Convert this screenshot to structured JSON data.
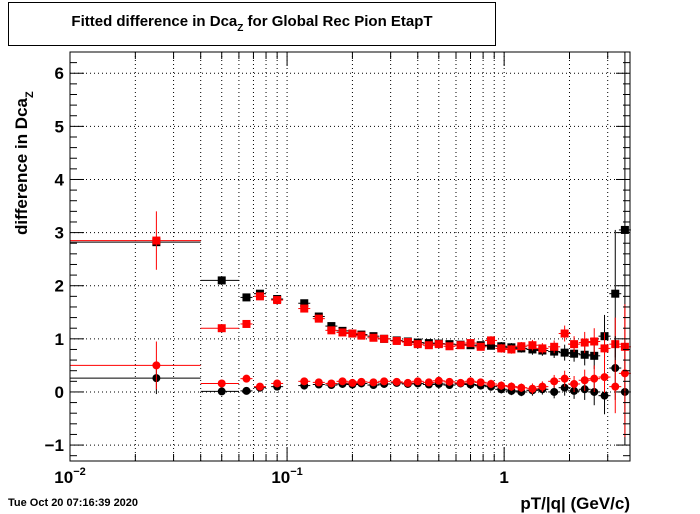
{
  "title": {
    "prefix": "Fitted difference in Dca",
    "sub": "Z",
    "suffix": " for Global Rec Pion EtapT"
  },
  "footer": {
    "datetime": "Tue Oct 20 07:16:39 2020"
  },
  "chart_data": {
    "type": "scatter",
    "title": "Fitted difference in DcaZ for Global Rec Pion EtapT",
    "xlabel": "pT/|q| (GeV/c)",
    "ylabel": "difference in Dca",
    "ylabel_sub": "Z",
    "x_scale": "log",
    "xlim": [
      0.01,
      3.8
    ],
    "ylim": [
      -1.3,
      6.4
    ],
    "grid": true,
    "x_ticks": [
      {
        "value": 0.01,
        "base": "10",
        "exp": "−2"
      },
      {
        "value": 0.1,
        "base": "10",
        "exp": "−1"
      },
      {
        "value": 1,
        "base": "1",
        "exp": ""
      }
    ],
    "y_ticks": [
      -1,
      0,
      1,
      2,
      3,
      4,
      5,
      6
    ],
    "series": [
      {
        "marker": "square",
        "color": "#000000",
        "points": [
          {
            "x": 0.025,
            "xerr": [
              0.01,
              0.04
            ],
            "y": 2.82,
            "yerr": 0.05
          },
          {
            "x": 0.05,
            "xerr": [
              0.04,
              0.06
            ],
            "y": 2.1,
            "yerr": 0.05
          },
          {
            "x": 0.065,
            "y": 1.78,
            "yerr": 0.05
          },
          {
            "x": 0.075,
            "y": 1.85,
            "yerr": 0.05
          },
          {
            "x": 0.09,
            "y": 1.75,
            "yerr": 0.05
          },
          {
            "x": 0.12,
            "y": 1.67,
            "yerr": 0.05
          },
          {
            "x": 0.14,
            "y": 1.42,
            "yerr": 0.05
          },
          {
            "x": 0.16,
            "y": 1.24,
            "yerr": 0.05
          },
          {
            "x": 0.18,
            "y": 1.15,
            "yerr": 0.05
          },
          {
            "x": 0.2,
            "y": 1.1,
            "yerr": 0.05
          },
          {
            "x": 0.22,
            "y": 1.08,
            "yerr": 0.05
          },
          {
            "x": 0.25,
            "y": 1.05,
            "yerr": 0.05
          },
          {
            "x": 0.28,
            "y": 1.0,
            "yerr": 0.05
          },
          {
            "x": 0.32,
            "y": 0.97,
            "yerr": 0.05
          },
          {
            "x": 0.36,
            "y": 0.95,
            "yerr": 0.05
          },
          {
            "x": 0.4,
            "y": 0.93,
            "yerr": 0.05
          },
          {
            "x": 0.45,
            "y": 0.92,
            "yerr": 0.05
          },
          {
            "x": 0.5,
            "y": 0.91,
            "yerr": 0.05
          },
          {
            "x": 0.56,
            "y": 0.9,
            "yerr": 0.05
          },
          {
            "x": 0.63,
            "y": 0.89,
            "yerr": 0.05
          },
          {
            "x": 0.7,
            "y": 0.88,
            "yerr": 0.05
          },
          {
            "x": 0.78,
            "y": 0.88,
            "yerr": 0.05
          },
          {
            "x": 0.87,
            "y": 0.87,
            "yerr": 0.05
          },
          {
            "x": 0.97,
            "y": 0.86,
            "yerr": 0.08
          },
          {
            "x": 1.08,
            "y": 0.84,
            "yerr": 0.08
          },
          {
            "x": 1.2,
            "y": 0.82,
            "yerr": 0.08
          },
          {
            "x": 1.35,
            "y": 0.8,
            "yerr": 0.1
          },
          {
            "x": 1.5,
            "y": 0.78,
            "yerr": 0.1
          },
          {
            "x": 1.7,
            "y": 0.76,
            "yerr": 0.12
          },
          {
            "x": 1.9,
            "y": 0.74,
            "yerr": 0.15
          },
          {
            "x": 2.1,
            "y": 0.72,
            "yerr": 0.15
          },
          {
            "x": 2.35,
            "y": 0.7,
            "yerr": 0.2
          },
          {
            "x": 2.6,
            "y": 0.68,
            "yerr": 0.25
          },
          {
            "x": 2.9,
            "y": 1.05,
            "yerr": 0.4
          },
          {
            "x": 3.25,
            "y": 1.85,
            "yerr": 1.2
          },
          {
            "x": 3.6,
            "y": 3.05,
            "yerr": 3.4
          }
        ]
      },
      {
        "marker": "square",
        "color": "#ff0000",
        "points": [
          {
            "x": 0.025,
            "xerr": [
              0.01,
              0.04
            ],
            "y": 2.85,
            "yerr": 0.55
          },
          {
            "x": 0.05,
            "xerr": [
              0.04,
              0.06
            ],
            "y": 1.2,
            "yerr": 0.05
          },
          {
            "x": 0.065,
            "y": 1.28,
            "yerr": 0.05
          },
          {
            "x": 0.075,
            "y": 1.8,
            "yerr": 0.05
          },
          {
            "x": 0.09,
            "y": 1.73,
            "yerr": 0.05
          },
          {
            "x": 0.12,
            "y": 1.57,
            "yerr": 0.05
          },
          {
            "x": 0.14,
            "y": 1.38,
            "yerr": 0.05
          },
          {
            "x": 0.16,
            "y": 1.16,
            "yerr": 0.05
          },
          {
            "x": 0.18,
            "y": 1.12,
            "yerr": 0.05
          },
          {
            "x": 0.2,
            "y": 1.1,
            "yerr": 0.05
          },
          {
            "x": 0.22,
            "y": 1.06,
            "yerr": 0.05
          },
          {
            "x": 0.25,
            "y": 1.02,
            "yerr": 0.05
          },
          {
            "x": 0.28,
            "y": 1.0,
            "yerr": 0.05
          },
          {
            "x": 0.32,
            "y": 0.96,
            "yerr": 0.05
          },
          {
            "x": 0.36,
            "y": 0.94,
            "yerr": 0.05
          },
          {
            "x": 0.4,
            "y": 0.9,
            "yerr": 0.05
          },
          {
            "x": 0.45,
            "y": 0.88,
            "yerr": 0.05
          },
          {
            "x": 0.5,
            "y": 0.9,
            "yerr": 0.05
          },
          {
            "x": 0.56,
            "y": 0.86,
            "yerr": 0.05
          },
          {
            "x": 0.63,
            "y": 0.88,
            "yerr": 0.05
          },
          {
            "x": 0.7,
            "y": 0.92,
            "yerr": 0.05
          },
          {
            "x": 0.78,
            "y": 0.85,
            "yerr": 0.05
          },
          {
            "x": 0.87,
            "y": 0.97,
            "yerr": 0.08
          },
          {
            "x": 0.97,
            "y": 0.82,
            "yerr": 0.08
          },
          {
            "x": 1.08,
            "y": 0.8,
            "yerr": 0.08
          },
          {
            "x": 1.2,
            "y": 0.86,
            "yerr": 0.08
          },
          {
            "x": 1.35,
            "y": 0.88,
            "yerr": 0.1
          },
          {
            "x": 1.5,
            "y": 0.82,
            "yerr": 0.1
          },
          {
            "x": 1.7,
            "y": 0.85,
            "yerr": 0.12
          },
          {
            "x": 1.9,
            "y": 1.1,
            "yerr": 0.15
          },
          {
            "x": 2.1,
            "y": 0.9,
            "yerr": 0.15
          },
          {
            "x": 2.35,
            "y": 0.93,
            "yerr": 0.2
          },
          {
            "x": 2.6,
            "y": 0.95,
            "yerr": 0.25
          },
          {
            "x": 2.9,
            "y": 0.82,
            "yerr": 0.3
          },
          {
            "x": 3.25,
            "y": 0.9,
            "yerr": 0.5
          },
          {
            "x": 3.6,
            "y": 0.85,
            "yerr": 0.8
          }
        ]
      },
      {
        "marker": "circle",
        "color": "#000000",
        "points": [
          {
            "x": 0.025,
            "xerr": [
              0.01,
              0.04
            ],
            "y": 0.26,
            "yerr": 0.3
          },
          {
            "x": 0.05,
            "xerr": [
              0.04,
              0.06
            ],
            "y": 0.01,
            "yerr": 0.05
          },
          {
            "x": 0.065,
            "y": 0.02,
            "yerr": 0.05
          },
          {
            "x": 0.075,
            "y": 0.08,
            "yerr": 0.05
          },
          {
            "x": 0.09,
            "y": 0.1,
            "yerr": 0.05
          },
          {
            "x": 0.12,
            "y": 0.12,
            "yerr": 0.05
          },
          {
            "x": 0.14,
            "y": 0.14,
            "yerr": 0.05
          },
          {
            "x": 0.16,
            "y": 0.13,
            "yerr": 0.05
          },
          {
            "x": 0.18,
            "y": 0.15,
            "yerr": 0.05
          },
          {
            "x": 0.2,
            "y": 0.14,
            "yerr": 0.05
          },
          {
            "x": 0.22,
            "y": 0.16,
            "yerr": 0.05
          },
          {
            "x": 0.25,
            "y": 0.13,
            "yerr": 0.05
          },
          {
            "x": 0.28,
            "y": 0.15,
            "yerr": 0.05
          },
          {
            "x": 0.32,
            "y": 0.17,
            "yerr": 0.05
          },
          {
            "x": 0.36,
            "y": 0.15,
            "yerr": 0.05
          },
          {
            "x": 0.4,
            "y": 0.16,
            "yerr": 0.05
          },
          {
            "x": 0.45,
            "y": 0.14,
            "yerr": 0.05
          },
          {
            "x": 0.5,
            "y": 0.15,
            "yerr": 0.05
          },
          {
            "x": 0.56,
            "y": 0.13,
            "yerr": 0.05
          },
          {
            "x": 0.63,
            "y": 0.16,
            "yerr": 0.05
          },
          {
            "x": 0.7,
            "y": 0.14,
            "yerr": 0.05
          },
          {
            "x": 0.78,
            "y": 0.12,
            "yerr": 0.05
          },
          {
            "x": 0.87,
            "y": 0.1,
            "yerr": 0.08
          },
          {
            "x": 0.97,
            "y": 0.05,
            "yerr": 0.08
          },
          {
            "x": 1.08,
            "y": 0.02,
            "yerr": 0.08
          },
          {
            "x": 1.2,
            "y": 0.0,
            "yerr": 0.08
          },
          {
            "x": 1.35,
            "y": 0.03,
            "yerr": 0.1
          },
          {
            "x": 1.5,
            "y": 0.05,
            "yerr": 0.1
          },
          {
            "x": 1.7,
            "y": 0.0,
            "yerr": 0.12
          },
          {
            "x": 1.9,
            "y": 0.08,
            "yerr": 0.15
          },
          {
            "x": 2.1,
            "y": 0.02,
            "yerr": 0.15
          },
          {
            "x": 2.35,
            "y": 0.05,
            "yerr": 0.2
          },
          {
            "x": 2.6,
            "y": 0.0,
            "yerr": 0.25
          },
          {
            "x": 2.9,
            "y": -0.07,
            "yerr": 0.35
          },
          {
            "x": 3.25,
            "y": 0.45,
            "yerr": 0.6
          },
          {
            "x": 3.6,
            "y": 0.0,
            "yerr": 1.0
          }
        ]
      },
      {
        "marker": "circle",
        "color": "#ff0000",
        "points": [
          {
            "x": 0.025,
            "xerr": [
              0.01,
              0.04
            ],
            "y": 0.5,
            "yerr": 0.45
          },
          {
            "x": 0.05,
            "xerr": [
              0.04,
              0.06
            ],
            "y": 0.16,
            "yerr": 0.05
          },
          {
            "x": 0.065,
            "y": 0.25,
            "yerr": 0.05
          },
          {
            "x": 0.075,
            "y": 0.1,
            "yerr": 0.05
          },
          {
            "x": 0.09,
            "y": 0.16,
            "yerr": 0.05
          },
          {
            "x": 0.12,
            "y": 0.2,
            "yerr": 0.05
          },
          {
            "x": 0.14,
            "y": 0.18,
            "yerr": 0.05
          },
          {
            "x": 0.16,
            "y": 0.16,
            "yerr": 0.05
          },
          {
            "x": 0.18,
            "y": 0.2,
            "yerr": 0.05
          },
          {
            "x": 0.2,
            "y": 0.17,
            "yerr": 0.05
          },
          {
            "x": 0.22,
            "y": 0.19,
            "yerr": 0.05
          },
          {
            "x": 0.25,
            "y": 0.18,
            "yerr": 0.05
          },
          {
            "x": 0.28,
            "y": 0.2,
            "yerr": 0.05
          },
          {
            "x": 0.32,
            "y": 0.19,
            "yerr": 0.05
          },
          {
            "x": 0.36,
            "y": 0.17,
            "yerr": 0.05
          },
          {
            "x": 0.4,
            "y": 0.2,
            "yerr": 0.05
          },
          {
            "x": 0.45,
            "y": 0.18,
            "yerr": 0.05
          },
          {
            "x": 0.5,
            "y": 0.21,
            "yerr": 0.05
          },
          {
            "x": 0.56,
            "y": 0.19,
            "yerr": 0.05
          },
          {
            "x": 0.63,
            "y": 0.17,
            "yerr": 0.05
          },
          {
            "x": 0.7,
            "y": 0.2,
            "yerr": 0.05
          },
          {
            "x": 0.78,
            "y": 0.18,
            "yerr": 0.05
          },
          {
            "x": 0.87,
            "y": 0.15,
            "yerr": 0.08
          },
          {
            "x": 0.97,
            "y": 0.12,
            "yerr": 0.08
          },
          {
            "x": 1.08,
            "y": 0.1,
            "yerr": 0.08
          },
          {
            "x": 1.2,
            "y": 0.08,
            "yerr": 0.08
          },
          {
            "x": 1.35,
            "y": 0.06,
            "yerr": 0.1
          },
          {
            "x": 1.5,
            "y": 0.1,
            "yerr": 0.1
          },
          {
            "x": 1.7,
            "y": 0.2,
            "yerr": 0.12
          },
          {
            "x": 1.9,
            "y": 0.25,
            "yerr": 0.15
          },
          {
            "x": 2.1,
            "y": 0.15,
            "yerr": 0.15
          },
          {
            "x": 2.35,
            "y": 0.22,
            "yerr": 0.2
          },
          {
            "x": 2.6,
            "y": 0.25,
            "yerr": 0.25
          },
          {
            "x": 2.9,
            "y": 0.28,
            "yerr": 0.3
          },
          {
            "x": 3.25,
            "y": 0.1,
            "yerr": 0.5
          },
          {
            "x": 3.6,
            "y": 0.35,
            "yerr": 1.2
          }
        ]
      }
    ]
  }
}
